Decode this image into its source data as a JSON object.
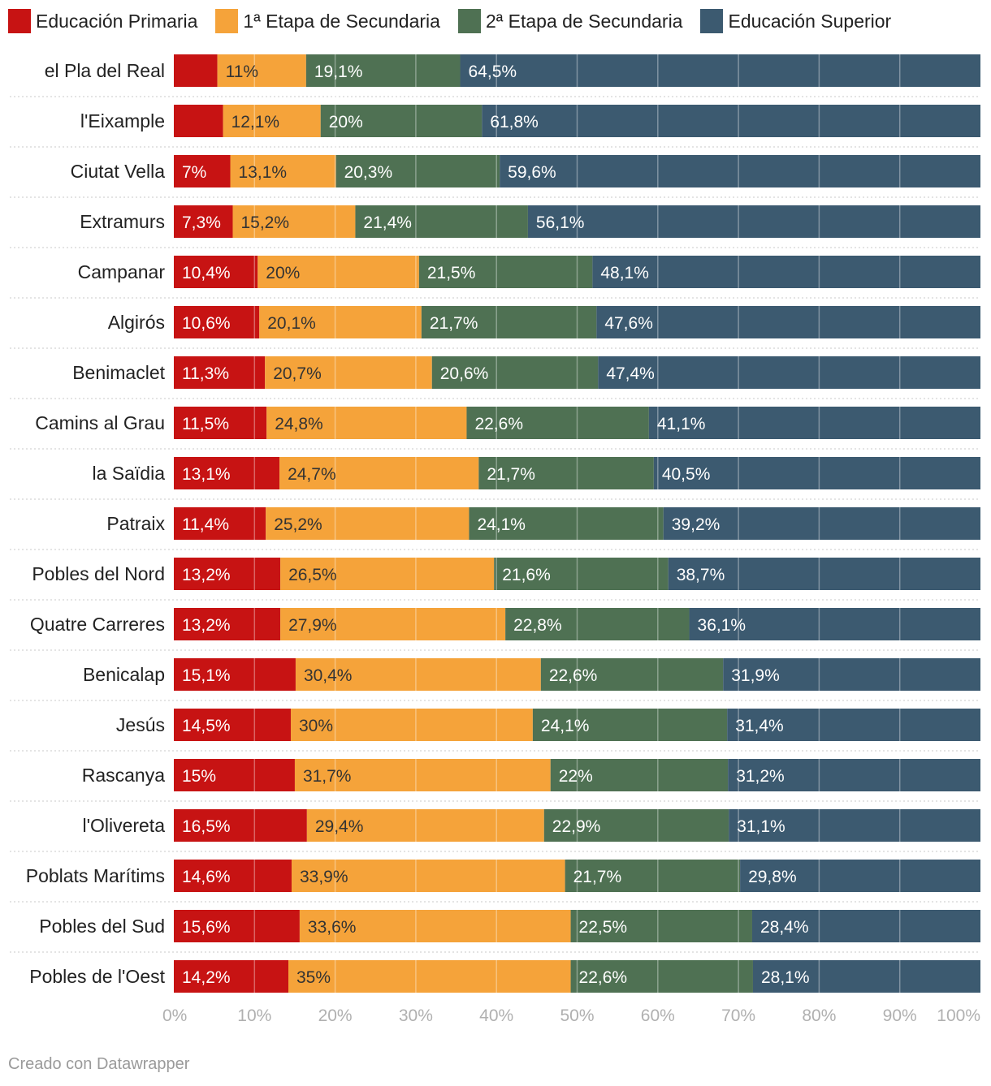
{
  "legend": {
    "items": [
      {
        "label": "Educación Primaria",
        "color": "#c71313"
      },
      {
        "label": "1ª Etapa de Secundaria",
        "color": "#f5a33a"
      },
      {
        "label": "2ª Etapa de Secundaria",
        "color": "#4f7153"
      },
      {
        "label": "Educación Superior",
        "color": "#3c5a70"
      }
    ]
  },
  "chart_data": {
    "type": "bar",
    "orientation": "horizontal",
    "stacked": true,
    "title": "",
    "xlabel": "",
    "ylabel": "",
    "xlim": [
      0,
      100
    ],
    "grid": true,
    "legend_position": "top",
    "x_ticks": [
      "0%",
      "10%",
      "20%",
      "30%",
      "40%",
      "50%",
      "60%",
      "70%",
      "80%",
      "90%",
      "100%"
    ],
    "categories": [
      "el Pla del Real",
      "l'Eixample",
      "Ciutat Vella",
      "Extramurs",
      "Campanar",
      "Algirós",
      "Benimaclet",
      "Camins al Grau",
      "la Saïdia",
      "Patraix",
      "Pobles del Nord",
      "Quatre Carreres",
      "Benicalap",
      "Jesús",
      "Rascanya",
      "l'Olivereta",
      "Poblats Marítims",
      "Pobles del Sud",
      "Pobles de l'Oest"
    ],
    "series": [
      {
        "name": "Educación Primaria",
        "color": "#c71313",
        "values": [
          5.4,
          6.1,
          7.0,
          7.3,
          10.4,
          10.6,
          11.3,
          11.5,
          13.1,
          11.4,
          13.2,
          13.2,
          15.1,
          14.5,
          15.0,
          16.5,
          14.6,
          15.6,
          14.2
        ],
        "labels": [
          "",
          "",
          "7%",
          "7,3%",
          "10,4%",
          "10,6%",
          "11,3%",
          "11,5%",
          "13,1%",
          "11,4%",
          "13,2%",
          "13,2%",
          "15,1%",
          "14,5%",
          "15%",
          "16,5%",
          "14,6%",
          "15,6%",
          "14,2%"
        ]
      },
      {
        "name": "1ª Etapa de Secundaria",
        "color": "#f5a33a",
        "values": [
          11.0,
          12.1,
          13.1,
          15.2,
          20.0,
          20.1,
          20.7,
          24.8,
          24.7,
          25.2,
          26.5,
          27.9,
          30.4,
          30.0,
          31.7,
          29.4,
          33.9,
          33.6,
          35.0
        ],
        "labels": [
          "11%",
          "12,1%",
          "13,1%",
          "15,2%",
          "20%",
          "20,1%",
          "20,7%",
          "24,8%",
          "24,7%",
          "25,2%",
          "26,5%",
          "27,9%",
          "30,4%",
          "30%",
          "31,7%",
          "29,4%",
          "33,9%",
          "33,6%",
          "35%"
        ]
      },
      {
        "name": "2ª Etapa de Secundaria",
        "color": "#4f7153",
        "values": [
          19.1,
          20.0,
          20.3,
          21.4,
          21.5,
          21.7,
          20.6,
          22.6,
          21.7,
          24.1,
          21.6,
          22.8,
          22.6,
          24.1,
          22.0,
          22.9,
          21.7,
          22.5,
          22.6
        ],
        "labels": [
          "19,1%",
          "20%",
          "20,3%",
          "21,4%",
          "21,5%",
          "21,7%",
          "20,6%",
          "22,6%",
          "21,7%",
          "24,1%",
          "21,6%",
          "22,8%",
          "22,6%",
          "24,1%",
          "22%",
          "22,9%",
          "21,7%",
          "22,5%",
          "22,6%"
        ]
      },
      {
        "name": "Educación Superior",
        "color": "#3c5a70",
        "values": [
          64.5,
          61.8,
          59.6,
          56.1,
          48.1,
          47.6,
          47.4,
          41.1,
          40.5,
          39.2,
          38.7,
          36.1,
          31.9,
          31.4,
          31.2,
          31.1,
          29.8,
          28.4,
          28.1
        ],
        "labels": [
          "64,5%",
          "61,8%",
          "59,6%",
          "56,1%",
          "48,1%",
          "47,6%",
          "47,4%",
          "41,1%",
          "40,5%",
          "39,2%",
          "38,7%",
          "36,1%",
          "31,9%",
          "31,4%",
          "31,2%",
          "31,1%",
          "29,8%",
          "28,4%",
          "28,1%"
        ]
      }
    ]
  },
  "footer": {
    "credit": "Creado con Datawrapper"
  }
}
